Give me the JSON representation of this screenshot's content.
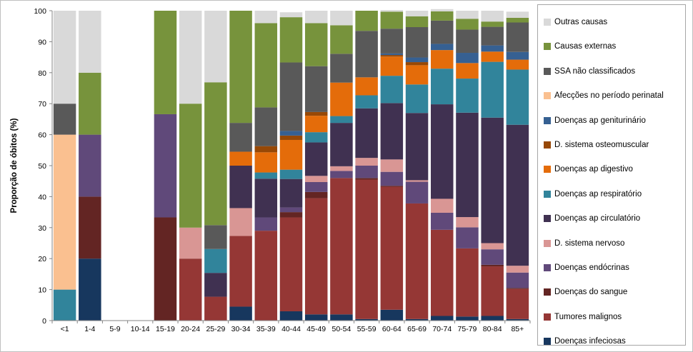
{
  "chart_data": {
    "type": "bar",
    "stacked": true,
    "ylabel": "Proporção de óbitos (%)",
    "ylim": [
      0,
      100
    ],
    "yticks": [
      0,
      10,
      20,
      30,
      40,
      50,
      60,
      70,
      80,
      90,
      100
    ],
    "grid": false,
    "legend_position": "right",
    "categories": [
      "<1",
      "1-4",
      "5-9",
      "10-14",
      "15-19",
      "20-24",
      "25-29",
      "30-34",
      "35-39",
      "40-44",
      "45-49",
      "50-54",
      "55-59",
      "60-64",
      "65-69",
      "70-74",
      "75-79",
      "80-84",
      "85+"
    ],
    "series": [
      {
        "name": "Doenças infeciosas",
        "color": "#17375e",
        "values": [
          0,
          20,
          0,
          0,
          0,
          0,
          0,
          4.5,
          0,
          3,
          2,
          2,
          0.5,
          3.5,
          0.5,
          1.5,
          1.3,
          1.5,
          0.5
        ]
      },
      {
        "name": "Tumores malignos",
        "color": "#953735",
        "values": [
          0,
          0,
          0,
          0,
          0,
          20,
          7.7,
          22.8,
          29,
          30.3,
          37.5,
          44,
          45,
          39.7,
          37.3,
          27.8,
          22,
          16,
          9.7
        ]
      },
      {
        "name": "Doenças do sangue",
        "color": "#632523",
        "values": [
          0,
          20,
          0,
          0,
          33.3,
          0,
          0,
          0,
          0,
          1.7,
          2,
          0,
          0.5,
          0.3,
          0,
          0,
          0,
          0.5,
          0.3
        ]
      },
      {
        "name": "Doenças endócrinas",
        "color": "#60497a",
        "values": [
          0,
          20,
          0,
          0,
          33.3,
          0,
          0,
          0,
          4.3,
          1.5,
          3.2,
          2.3,
          4,
          4.5,
          7,
          5.5,
          6.8,
          5,
          5
        ]
      },
      {
        "name": "D. sistema nervoso",
        "color": "#d99694",
        "values": [
          0,
          0,
          0,
          0,
          0,
          10,
          0,
          9,
          0,
          0,
          2,
          1.5,
          2.5,
          4,
          0.5,
          4.5,
          3.3,
          2,
          2.2
        ]
      },
      {
        "name": "Doenças ap circulatório",
        "color": "#403151",
        "values": [
          0,
          0,
          0,
          0,
          0,
          0,
          7.7,
          13.7,
          12.5,
          9.2,
          10.8,
          14,
          16,
          18.2,
          21.7,
          30.5,
          33.7,
          40.5,
          45.5
        ]
      },
      {
        "name": "Doenças ap respiratório",
        "color": "#31849b",
        "values": [
          10,
          0,
          0,
          0,
          0,
          0,
          7.7,
          0,
          2,
          3,
          3.3,
          2.2,
          4.2,
          8.8,
          9.2,
          11.5,
          11,
          18,
          17.8
        ]
      },
      {
        "name": "Doenças ap digestivo",
        "color": "#e46c0a",
        "values": [
          0,
          0,
          0,
          0,
          0,
          0,
          0,
          4.5,
          6.5,
          9.6,
          5.3,
          10.8,
          5.8,
          6.2,
          6.2,
          6,
          5,
          3.3,
          3.2
        ]
      },
      {
        "name": "D. sistema osteomuscular",
        "color": "#974806",
        "values": [
          0,
          0,
          0,
          0,
          0,
          0,
          0,
          0,
          2,
          1.4,
          1.2,
          0,
          0,
          0.5,
          1,
          0,
          0,
          0,
          0
        ]
      },
      {
        "name": "Doenças ap geniturinário",
        "color": "#366092",
        "values": [
          0,
          0,
          0,
          0,
          0,
          0,
          0,
          0,
          0,
          1.5,
          0,
          0,
          0,
          0.5,
          1.5,
          2,
          3.3,
          2,
          2.5
        ]
      },
      {
        "name": "Afecções no período perinatal",
        "color": "#fac090",
        "values": [
          50,
          0,
          0,
          0,
          0,
          0,
          0,
          0,
          0,
          0,
          0,
          0,
          0,
          0,
          0,
          0,
          0,
          0,
          0
        ]
      },
      {
        "name": "SSA não classificados",
        "color": "#595959",
        "values": [
          10,
          0,
          0,
          0,
          0,
          0,
          7.7,
          9.3,
          12.5,
          22.1,
          14.8,
          9.3,
          15,
          8,
          9.8,
          7.5,
          7.5,
          6,
          9.5
        ]
      },
      {
        "name": "Causas externas",
        "color": "#77933c",
        "values": [
          0,
          20,
          0,
          0,
          33.4,
          40,
          46.1,
          36.2,
          27.2,
          14.6,
          13.9,
          9.2,
          6.5,
          5.5,
          3.5,
          3,
          3.5,
          1.7,
          1.5
        ]
      },
      {
        "name": "Outras causas",
        "color": "#d9d9d9",
        "values": [
          30,
          20,
          0,
          0,
          0,
          30,
          23.1,
          0,
          4,
          1.6,
          4,
          4.7,
          0,
          0.5,
          1.8,
          0.7,
          2.6,
          3.5,
          2
        ]
      }
    ]
  },
  "legend": {
    "order": [
      "Outras causas",
      "Causas externas",
      "SSA não classificados",
      "Afecções no período perinatal",
      "Doenças ap geniturinário",
      "D. sistema osteomuscular",
      "Doenças ap digestivo",
      "Doenças ap respiratório",
      "Doenças ap circulatório",
      "D. sistema nervoso",
      "Doenças endócrinas",
      "Doenças do sangue",
      "Tumores malignos",
      "Doenças infeciosas"
    ]
  }
}
